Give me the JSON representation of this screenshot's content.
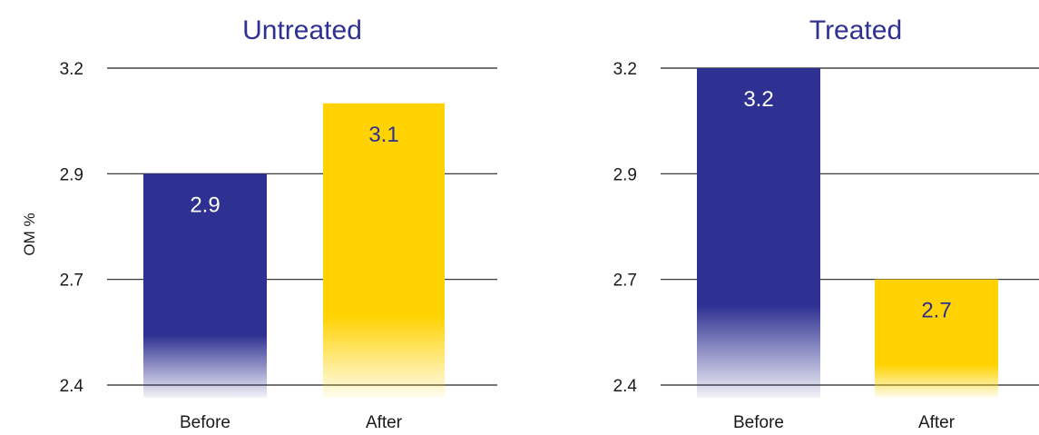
{
  "colors": {
    "before": "#2e3192",
    "after": "#ffd200",
    "title": "#2e3192",
    "gridline": "#222222",
    "label_on_before": "#ffffff",
    "label_on_after": "#2e3192"
  },
  "chart_data": [
    {
      "type": "bar",
      "title": "Untreated",
      "ylabel": "OM %",
      "xlabel": "",
      "categories": [
        "Before",
        "After"
      ],
      "values": [
        2.9,
        3.1
      ],
      "data_labels": [
        "2.9",
        "3.1"
      ],
      "yticks": [
        2.4,
        2.7,
        2.9,
        3.2
      ],
      "ytick_labels": [
        "2.4",
        "2.7",
        "2.9",
        "3.2"
      ],
      "ylim": [
        2.4,
        3.2
      ],
      "grid": true,
      "legend": "none"
    },
    {
      "type": "bar",
      "title": "Treated",
      "ylabel": "",
      "xlabel": "",
      "categories": [
        "Before",
        "After"
      ],
      "values": [
        3.2,
        2.7
      ],
      "data_labels": [
        "3.2",
        "2.7"
      ],
      "yticks": [
        2.4,
        2.7,
        2.9,
        3.2
      ],
      "ytick_labels": [
        "2.4",
        "2.7",
        "2.9",
        "3.2"
      ],
      "ylim": [
        2.4,
        3.2
      ],
      "grid": true,
      "legend": "none"
    }
  ]
}
